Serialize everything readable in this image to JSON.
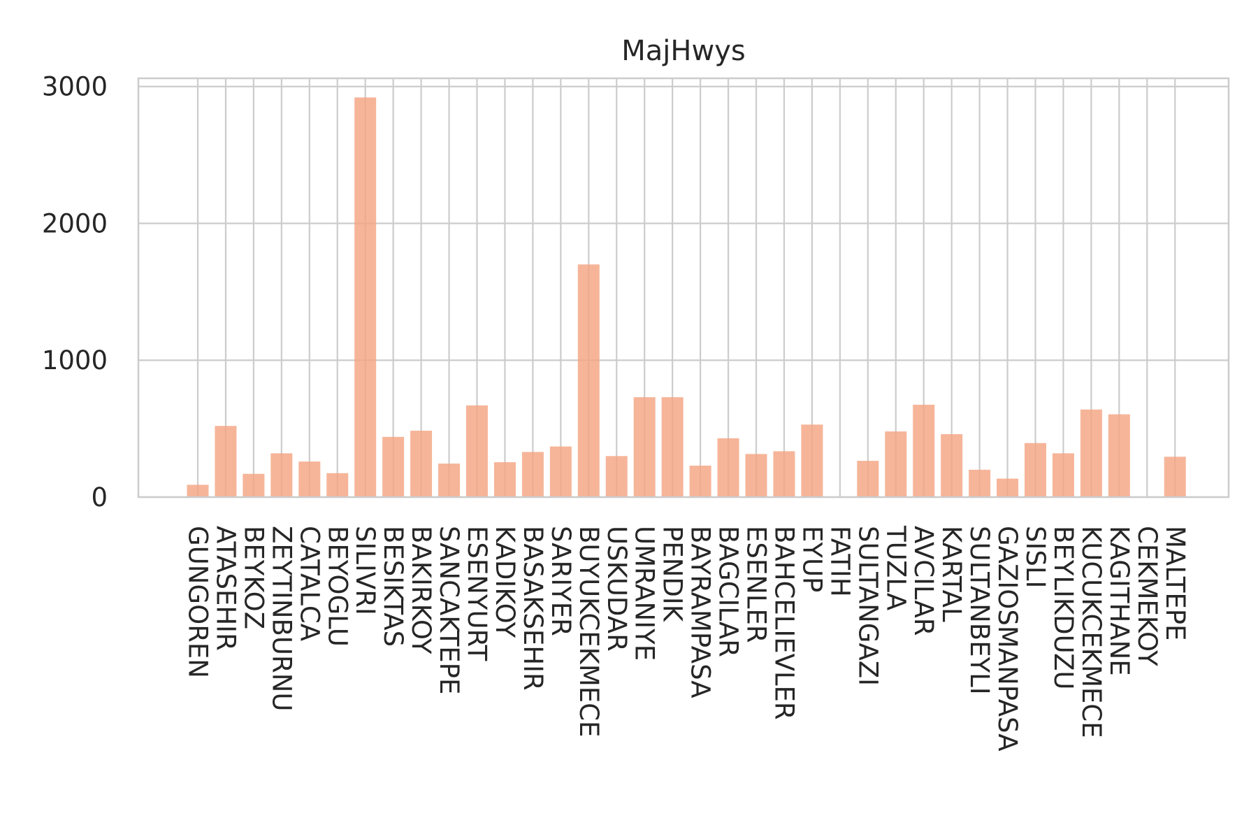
{
  "chart_data": {
    "type": "bar",
    "title": "MajHwys",
    "xlabel": "",
    "ylabel": "",
    "categories": [
      "GUNGOREN",
      "ATASEHIR",
      "BEYKOZ",
      "ZEYTINBURNU",
      "CATALCA",
      "BEYOGLU",
      "SILIVRI",
      "BESIKTAS",
      "BAKIRKOY",
      "SANCAKTEPE",
      "ESENYURT",
      "KADIKOY",
      "BASAKSEHIR",
      "SARIYER",
      "BUYUKCEKMECE",
      "USKUDAR",
      "UMRANIYE",
      "PENDIK",
      "BAYRAMPASA",
      "BAGCILAR",
      "ESENLER",
      "BAHCELIEVLER",
      "EYUP",
      "FATIH",
      "SULTANGAZI",
      "TUZLA",
      "AVCILAR",
      "KARTAL",
      "SULTANBEYLI",
      "GAZIOSMANPASA",
      "SISLI",
      "BEYLIKDUZU",
      "KUCUKCEKMECE",
      "KAGITHANE",
      "CEKMEKOY",
      "MALTEPE"
    ],
    "values": [
      90,
      520,
      170,
      320,
      260,
      175,
      2920,
      440,
      485,
      245,
      670,
      255,
      330,
      370,
      1700,
      300,
      730,
      730,
      230,
      430,
      315,
      335,
      530,
      0,
      265,
      480,
      675,
      460,
      200,
      135,
      395,
      320,
      640,
      605,
      0,
      295
    ],
    "ylim": [
      0,
      3060
    ],
    "yticks": [
      0,
      1000,
      2000,
      3000
    ],
    "ytick_labels": [
      "0",
      "1000",
      "2000",
      "3000"
    ],
    "grid": true,
    "legend": "none",
    "colors": {
      "bar": "#f4a582",
      "grid": "#cccccc",
      "text": "#262626"
    }
  }
}
